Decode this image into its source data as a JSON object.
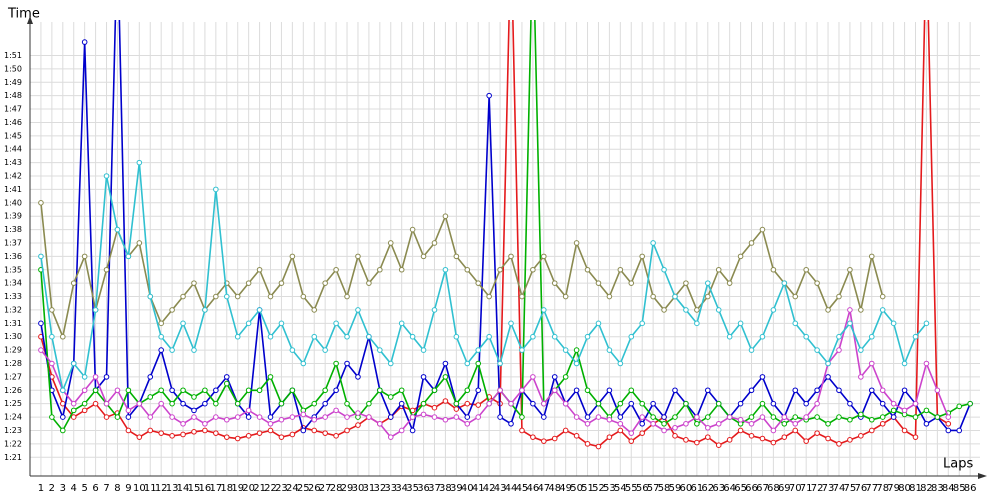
{
  "chart_data": {
    "type": "line",
    "xlabel": "Laps",
    "ylabel": "Time",
    "x": [
      1,
      2,
      3,
      4,
      5,
      6,
      7,
      8,
      9,
      10,
      11,
      12,
      13,
      14,
      15,
      16,
      17,
      18,
      19,
      20,
      21,
      22,
      23,
      24,
      25,
      26,
      27,
      28,
      29,
      30,
      31,
      32,
      33,
      34,
      35,
      36,
      37,
      38,
      39,
      40,
      41,
      42,
      43,
      44,
      45,
      46,
      47,
      48,
      49,
      50,
      51,
      52,
      53,
      54,
      55,
      56,
      57,
      58,
      59,
      60,
      61,
      62,
      63,
      64,
      65,
      66,
      67,
      68,
      69,
      70,
      71,
      72,
      73,
      74,
      75,
      76,
      77,
      78,
      79,
      80,
      81,
      82,
      83,
      84,
      85,
      86
    ],
    "xlim": [
      0,
      86.9
    ],
    "ylim": [
      79.6,
      113.5
    ],
    "yticks": [
      {
        "value": 81,
        "label": "1:21"
      },
      {
        "value": 82,
        "label": "1:22"
      },
      {
        "value": 83,
        "label": "1:23"
      },
      {
        "value": 84,
        "label": "1:24"
      },
      {
        "value": 85,
        "label": "1:25"
      },
      {
        "value": 86,
        "label": "1:26"
      },
      {
        "value": 87,
        "label": "1:27"
      },
      {
        "value": 88,
        "label": "1:28"
      },
      {
        "value": 89,
        "label": "1:29"
      },
      {
        "value": 90,
        "label": "1:30"
      },
      {
        "value": 91,
        "label": "1:31"
      },
      {
        "value": 92,
        "label": "1:32"
      },
      {
        "value": 93,
        "label": "1:33"
      },
      {
        "value": 94,
        "label": "1:34"
      },
      {
        "value": 95,
        "label": "1:35"
      },
      {
        "value": 96,
        "label": "1:36"
      },
      {
        "value": 97,
        "label": "1:37"
      },
      {
        "value": 98,
        "label": "1:38"
      },
      {
        "value": 99,
        "label": "1:39"
      },
      {
        "value": 100,
        "label": "1:40"
      },
      {
        "value": 101,
        "label": "1:41"
      },
      {
        "value": 102,
        "label": "1:42"
      },
      {
        "value": 103,
        "label": "1:43"
      },
      {
        "value": 104,
        "label": "1:44"
      },
      {
        "value": 105,
        "label": "1:45"
      },
      {
        "value": 106,
        "label": "1:46"
      },
      {
        "value": 107,
        "label": "1:47"
      },
      {
        "value": 108,
        "label": "1:48"
      },
      {
        "value": 109,
        "label": "1:49"
      },
      {
        "value": 110,
        "label": "1:50"
      },
      {
        "value": 111,
        "label": "1:51"
      }
    ],
    "grid": true,
    "series": [
      {
        "color": "#e41a1c",
        "values": [
          90,
          87,
          85,
          84,
          84.5,
          85,
          84,
          84.3,
          83,
          82.5,
          83,
          82.8,
          82.6,
          82.7,
          82.9,
          83,
          82.8,
          82.5,
          82.4,
          82.6,
          82.8,
          83,
          82.5,
          82.7,
          83.2,
          83,
          82.8,
          82.6,
          83,
          83.4,
          84,
          83.5,
          84,
          84.8,
          84.5,
          85,
          84.7,
          85.2,
          84.6,
          85,
          84.9,
          85.5,
          85,
          120,
          83,
          82.5,
          82.2,
          82.4,
          83,
          82.6,
          82,
          81.8,
          82.5,
          83,
          82.2,
          82.8,
          83.5,
          84,
          82.6,
          82.3,
          82.1,
          82.5,
          81.9,
          82.3,
          83,
          82.6,
          82.4,
          82.1,
          82.5,
          83,
          82.2,
          82.8,
          82.4,
          82,
          82.3,
          82.6,
          83,
          83.5,
          84,
          83,
          82.5,
          120,
          84,
          83.5,
          null,
          null
        ]
      },
      {
        "color": "#0000cc",
        "values": [
          91,
          86,
          84,
          88,
          112,
          86,
          87,
          120,
          84,
          85,
          87,
          89,
          86,
          85,
          84.5,
          85,
          86,
          87,
          85,
          84,
          92,
          84,
          85,
          86,
          83,
          84,
          85,
          86,
          88,
          87,
          90,
          86,
          84,
          85,
          83,
          87,
          86,
          88,
          85,
          84,
          86,
          108,
          84,
          83.5,
          86,
          85,
          84,
          87,
          85,
          86,
          84,
          85,
          86,
          84,
          85,
          83.5,
          85,
          84,
          86,
          85,
          84,
          86,
          85,
          84,
          85,
          86,
          87,
          85,
          84,
          86,
          85,
          86,
          87,
          86,
          85,
          84,
          86,
          85,
          84,
          86,
          85,
          83.5,
          84,
          83,
          83,
          85
        ]
      },
      {
        "color": "#00b000",
        "values": [
          95,
          84,
          83,
          84.5,
          85,
          86,
          85,
          84,
          86,
          85,
          85.5,
          86,
          85,
          86,
          85.5,
          86,
          85,
          86.5,
          85,
          86,
          86,
          87,
          85,
          86,
          84.5,
          85,
          86,
          88,
          85,
          84,
          85,
          86,
          85.5,
          86,
          84,
          85,
          86,
          87,
          85,
          86,
          88,
          85,
          86,
          85,
          84,
          120,
          85,
          86,
          87,
          89,
          86,
          85,
          84,
          85,
          86,
          85,
          84,
          83.5,
          84,
          85,
          83.5,
          84,
          85,
          84,
          83.5,
          84,
          85,
          84,
          83.5,
          84,
          83.8,
          84,
          83.5,
          84,
          83.8,
          84.2,
          83.8,
          84,
          84.5,
          84.2,
          84,
          84.5,
          84,
          84.3,
          84.8,
          85
        ]
      },
      {
        "color": "#8a8a50",
        "values": [
          100,
          92,
          90,
          94,
          96,
          92,
          95,
          98,
          96,
          97,
          93,
          91,
          92,
          93,
          94,
          92,
          93,
          94,
          93,
          94,
          95,
          93,
          94,
          96,
          93,
          92,
          94,
          95,
          93,
          96,
          94,
          95,
          97,
          95,
          98,
          96,
          97,
          99,
          96,
          95,
          94,
          93,
          95,
          96,
          93,
          95,
          96,
          94,
          93,
          97,
          95,
          94,
          93,
          95,
          94,
          96,
          93,
          92,
          93,
          94,
          92,
          93,
          95,
          94,
          96,
          97,
          98,
          95,
          94,
          93,
          95,
          94,
          92,
          93,
          95,
          92,
          96,
          93,
          null,
          null,
          null,
          null,
          null,
          null,
          null,
          null
        ]
      },
      {
        "color": "#cc44cc",
        "values": [
          89,
          88,
          86,
          85,
          86,
          87,
          85,
          86,
          84.5,
          85,
          84,
          85,
          84,
          83.5,
          84,
          83.5,
          84,
          83.8,
          84,
          84.5,
          84,
          83.5,
          83.8,
          84,
          84.2,
          83.8,
          84,
          84.5,
          84,
          84.3,
          84,
          83.5,
          82.5,
          83,
          84,
          84.2,
          84,
          83.8,
          84,
          83.5,
          84,
          85,
          86,
          85,
          86,
          87,
          85,
          86,
          85,
          84,
          83.5,
          84,
          83.8,
          83.5,
          82.8,
          84,
          83.5,
          83,
          83.2,
          83.5,
          84,
          83.2,
          83.5,
          84,
          83.8,
          83.5,
          84,
          83,
          84,
          83.5,
          84,
          85,
          88,
          89,
          92,
          87,
          88,
          86,
          85,
          84.5,
          85,
          88,
          86,
          84,
          null,
          null
        ]
      },
      {
        "color": "#30c0d0",
        "values": [
          96,
          90,
          86,
          88,
          87,
          92,
          102,
          98,
          96,
          103,
          93,
          90,
          89,
          91,
          89,
          92,
          101,
          93,
          90,
          91,
          92,
          90,
          91,
          89,
          88,
          90,
          89,
          91,
          90,
          92,
          90,
          89,
          88,
          91,
          90,
          89,
          92,
          95,
          90,
          88,
          89,
          90,
          88,
          91,
          89,
          90,
          92,
          90,
          89,
          88,
          90,
          91,
          89,
          88,
          90,
          91,
          97,
          95,
          93,
          92,
          91,
          94,
          92,
          90,
          91,
          89,
          90,
          92,
          94,
          91,
          90,
          89,
          88,
          90,
          91,
          89,
          90,
          92,
          91,
          88,
          90,
          91,
          null,
          null,
          null,
          null
        ]
      }
    ]
  }
}
